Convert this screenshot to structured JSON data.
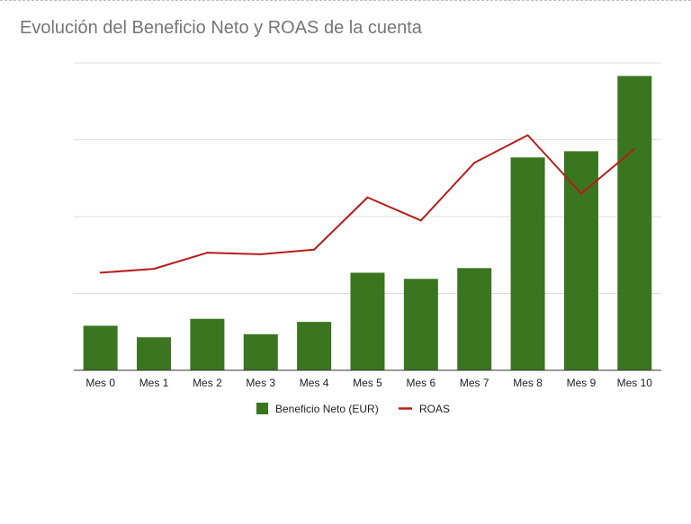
{
  "chart_data": {
    "type": "bar",
    "title": "Evolución del Beneficio Neto y ROAS de la cuenta",
    "categories": [
      "Mes 0",
      "Mes 1",
      "Mes 2",
      "Mes 3",
      "Mes 4",
      "Mes 5",
      "Mes 6",
      "Mes 7",
      "Mes 8",
      "Mes 9",
      "Mes 10"
    ],
    "series": [
      {
        "name": "Beneficio Neto (EUR)",
        "type": "bar",
        "color": "#3a761f",
        "values": [
          0.58,
          0.43,
          0.67,
          0.47,
          0.63,
          1.27,
          1.19,
          1.33,
          2.77,
          2.85,
          3.83
        ]
      },
      {
        "name": "ROAS",
        "type": "line",
        "color": "#b71c1c",
        "values": [
          1.27,
          1.32,
          1.53,
          1.51,
          1.57,
          2.25,
          1.95,
          2.7,
          3.06,
          2.3,
          2.88
        ]
      }
    ],
    "ylim": [
      0,
      4
    ],
    "grid": true,
    "legend": "bottom"
  }
}
